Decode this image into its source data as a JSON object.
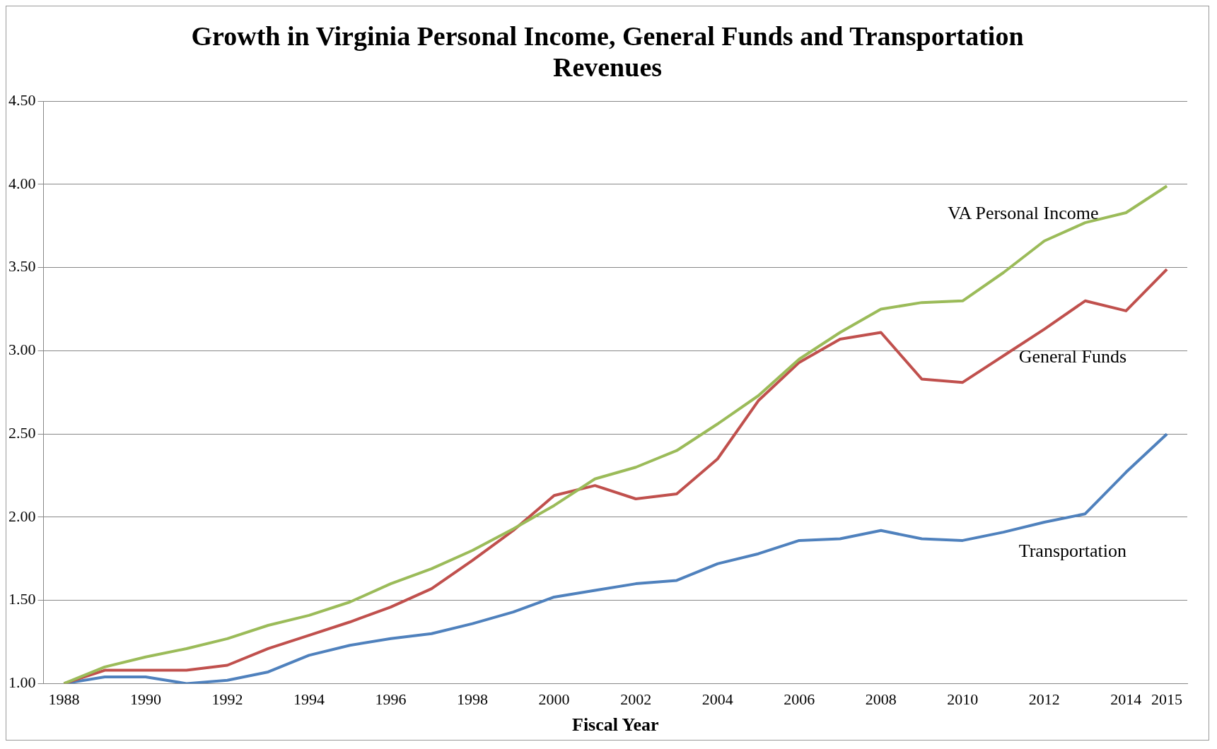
{
  "chart_data": {
    "type": "line",
    "title": "Growth in Virginia Personal Income, General Funds and Transportation Revenues",
    "xlabel": "Fiscal Year",
    "categories": [
      "1988",
      null,
      "1990",
      null,
      "1992",
      null,
      "1994",
      null,
      "1996",
      null,
      "1998",
      null,
      "2000",
      null,
      "2002",
      null,
      "2004",
      null,
      "2006",
      null,
      "2008",
      null,
      "2010",
      null,
      "2012",
      null,
      "2014",
      "2015"
    ],
    "series": [
      {
        "name": "VA Personal Income",
        "color": "#9bbb59",
        "values": [
          1.0,
          1.1,
          1.16,
          1.21,
          1.27,
          1.35,
          1.41,
          1.49,
          1.6,
          1.69,
          1.8,
          1.93,
          2.07,
          2.23,
          2.3,
          2.4,
          2.56,
          2.73,
          2.95,
          3.11,
          3.25,
          3.29,
          3.3,
          3.47,
          3.66,
          3.77,
          3.83,
          3.99
        ]
      },
      {
        "name": "General Funds",
        "color": "#c0504d",
        "values": [
          1.0,
          1.08,
          1.08,
          1.08,
          1.11,
          1.21,
          1.29,
          1.37,
          1.46,
          1.57,
          1.74,
          1.92,
          2.13,
          2.19,
          2.11,
          2.14,
          2.35,
          2.7,
          2.93,
          3.07,
          3.11,
          2.83,
          2.81,
          2.97,
          3.13,
          3.3,
          3.24,
          3.49
        ]
      },
      {
        "name": "Transportation",
        "color": "#4f81bd",
        "values": [
          1.0,
          1.04,
          1.04,
          1.0,
          1.02,
          1.07,
          1.17,
          1.23,
          1.27,
          1.3,
          1.36,
          1.43,
          1.52,
          1.56,
          1.6,
          1.62,
          1.72,
          1.78,
          1.86,
          1.87,
          1.92,
          1.87,
          1.86,
          1.91,
          1.97,
          2.02,
          2.27,
          2.5
        ]
      }
    ],
    "ylim": [
      1,
      4.5
    ],
    "yticks": [
      {
        "value": 1,
        "label": "1.00"
      },
      {
        "value": 1.5,
        "label": "1.50"
      },
      {
        "value": 2,
        "label": "2.00"
      },
      {
        "value": 2.5,
        "label": "2.50"
      },
      {
        "value": 3,
        "label": "3.00"
      },
      {
        "value": 3.5,
        "label": "3.50"
      },
      {
        "value": 4,
        "label": "4.00"
      },
      {
        "value": 4.5,
        "label": "4.50"
      }
    ],
    "grid": "y",
    "legend": false,
    "marker": "none",
    "line_style": "solid"
  }
}
